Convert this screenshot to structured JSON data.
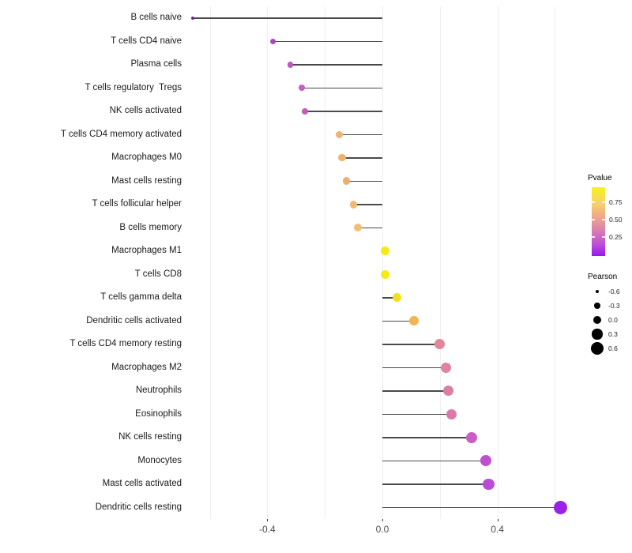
{
  "figure": {
    "type": "lollipop-chart",
    "x_axis": {
      "tick_labels": [
        "-0.4",
        "0.0",
        "0.4"
      ],
      "tick_values": [
        -0.4,
        0.0,
        0.4
      ],
      "gridline_values": [
        -0.6,
        -0.4,
        -0.2,
        0.0,
        0.2,
        0.4,
        0.6
      ]
    },
    "legend_pvalue": {
      "title": "Pvalue",
      "tick_labels": [
        "0.75",
        "0.50",
        "0.25"
      ],
      "gradient_stops": [
        "#f8f21d",
        "#f8cf6b",
        "#eca48f",
        "#d879b5",
        "#bb50d9",
        "#9916f0"
      ],
      "gradient_positions": [
        0,
        0.25,
        0.45,
        0.65,
        0.83,
        1
      ]
    },
    "legend_pearson": {
      "title": "Pearson",
      "items": [
        {
          "label": "-0.6",
          "r": 2.3
        },
        {
          "label": "-0.3",
          "r": 3.8
        },
        {
          "label": "0.0",
          "r": 5.2
        },
        {
          "label": "0.3",
          "r": 6.6
        },
        {
          "label": "0.6",
          "r": 8.1
        }
      ]
    },
    "stem_color": "#4a4a4a",
    "rows": [
      {
        "label": "B cells naive",
        "pearson": -0.66,
        "pvalue": 0.02,
        "color": "#6b21b0"
      },
      {
        "label": "T cells CD4 naive",
        "pearson": -0.38,
        "pvalue": 0.13,
        "color": "#ab47bd"
      },
      {
        "label": "Plasma cells",
        "pearson": -0.32,
        "pvalue": 0.18,
        "color": "#bf56c3"
      },
      {
        "label": "T cells regulatory  Tregs",
        "pearson": -0.28,
        "pvalue": 0.2,
        "color": "#c45fc1"
      },
      {
        "label": "NK cells activated",
        "pearson": -0.27,
        "pvalue": 0.19,
        "color": "#c25bbd"
      },
      {
        "label": "T cells CD4 memory activated",
        "pearson": -0.15,
        "pvalue": 0.65,
        "color": "#efb474"
      },
      {
        "label": "Macrophages M0",
        "pearson": -0.14,
        "pvalue": 0.64,
        "color": "#efb26f"
      },
      {
        "label": "Mast cells resting",
        "pearson": -0.125,
        "pvalue": 0.62,
        "color": "#eeae6c"
      },
      {
        "label": "T cells follicular helper",
        "pearson": -0.1,
        "pvalue": 0.68,
        "color": "#f1ba72"
      },
      {
        "label": "B cells memory",
        "pearson": -0.085,
        "pvalue": 0.7,
        "color": "#f2bf72"
      },
      {
        "label": "Macrophages M1",
        "pearson": 0.01,
        "pvalue": 0.95,
        "color": "#f5e916"
      },
      {
        "label": "T cells CD8",
        "pearson": 0.01,
        "pvalue": 0.95,
        "color": "#f5e916"
      },
      {
        "label": "T cells gamma delta",
        "pearson": 0.05,
        "pvalue": 0.88,
        "color": "#f3df20"
      },
      {
        "label": "Dendritic cells activated",
        "pearson": 0.11,
        "pvalue": 0.6,
        "color": "#f2b356"
      },
      {
        "label": "T cells CD4 memory resting",
        "pearson": 0.2,
        "pvalue": 0.4,
        "color": "#e28599"
      },
      {
        "label": "Macrophages M2",
        "pearson": 0.22,
        "pvalue": 0.39,
        "color": "#e0839c"
      },
      {
        "label": "Neutrophils",
        "pearson": 0.23,
        "pvalue": 0.36,
        "color": "#dd7da3"
      },
      {
        "label": "Eosinophils",
        "pearson": 0.24,
        "pvalue": 0.35,
        "color": "#db7aa6"
      },
      {
        "label": "NK cells resting",
        "pearson": 0.31,
        "pvalue": 0.21,
        "color": "#ca5ec5"
      },
      {
        "label": "Monocytes",
        "pearson": 0.36,
        "pvalue": 0.15,
        "color": "#bf50cf"
      },
      {
        "label": "Mast cells activated",
        "pearson": 0.37,
        "pvalue": 0.13,
        "color": "#b94cd4"
      },
      {
        "label": "Dendritic cells resting",
        "pearson": 0.62,
        "pvalue": 0.04,
        "color": "#9b20e8"
      }
    ]
  },
  "chart_data": {
    "type": "scatter",
    "variant": "lollipop",
    "orientation": "horizontal",
    "title": "",
    "xlabel": "",
    "ylabel": "",
    "xlim": [
      -0.7,
      0.65
    ],
    "x_ticks": [
      -0.4,
      0.0,
      0.4
    ],
    "grid": "vertical gridlines every 0.2, no horizontal gridlines",
    "legend_position": "right",
    "categories": [
      "B cells naive",
      "T cells CD4 naive",
      "Plasma cells",
      "T cells regulatory  Tregs",
      "NK cells activated",
      "T cells CD4 memory activated",
      "Macrophages M0",
      "Mast cells resting",
      "T cells follicular helper",
      "B cells memory",
      "Macrophages M1",
      "T cells CD8",
      "T cells gamma delta",
      "Dendritic cells activated",
      "T cells CD4 memory resting",
      "Macrophages M2",
      "Neutrophils",
      "Eosinophils",
      "NK cells resting",
      "Monocytes",
      "Mast cells activated",
      "Dendritic cells resting"
    ],
    "series": [
      {
        "name": "Pearson",
        "encoding": [
          "x position",
          "dot size"
        ],
        "values": [
          -0.66,
          -0.38,
          -0.32,
          -0.28,
          -0.27,
          -0.15,
          -0.14,
          -0.125,
          -0.1,
          -0.085,
          0.01,
          0.01,
          0.05,
          0.11,
          0.2,
          0.22,
          0.23,
          0.24,
          0.31,
          0.36,
          0.37,
          0.62
        ]
      },
      {
        "name": "Pvalue",
        "encoding": [
          "dot color, purple(low) to yellow(high)"
        ],
        "values": [
          0.02,
          0.13,
          0.18,
          0.2,
          0.19,
          0.65,
          0.64,
          0.62,
          0.68,
          0.7,
          0.95,
          0.95,
          0.88,
          0.6,
          0.4,
          0.39,
          0.36,
          0.35,
          0.21,
          0.15,
          0.13,
          0.04
        ]
      }
    ]
  }
}
